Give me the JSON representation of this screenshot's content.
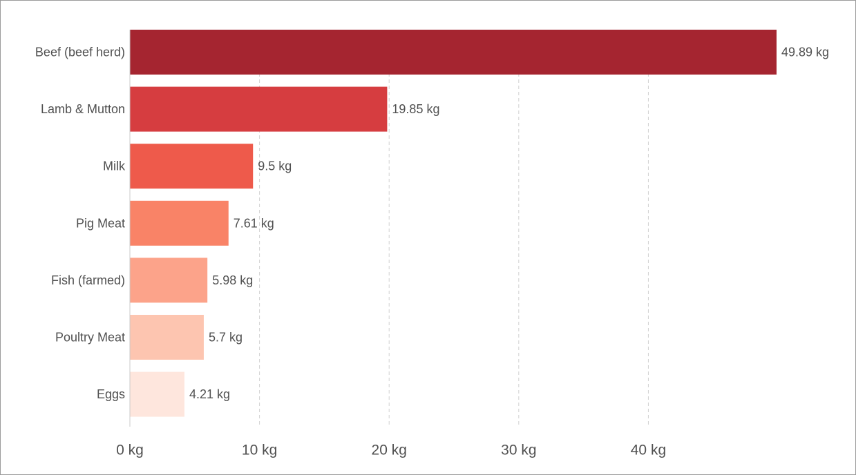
{
  "chart_data": {
    "type": "bar",
    "orientation": "horizontal",
    "title": "",
    "xlabel": "",
    "ylabel": "",
    "unit": "kg",
    "categories": [
      "Beef (beef herd)",
      "Lamb & Mutton",
      "Milk",
      "Pig Meat",
      "Fish (farmed)",
      "Poultry Meat",
      "Eggs"
    ],
    "values": [
      49.89,
      19.85,
      9.5,
      7.61,
      5.98,
      5.7,
      4.21
    ],
    "value_labels": [
      "49.89 kg",
      "19.85 kg",
      "9.5 kg",
      "7.61 kg",
      "5.98 kg",
      "5.7 kg",
      "4.21 kg"
    ],
    "colors": [
      "#a52530",
      "#d63d40",
      "#ee5a4b",
      "#f98367",
      "#fca38a",
      "#fdc5b0",
      "#fee6dd"
    ],
    "xticks": [
      0,
      10,
      20,
      30,
      40
    ],
    "xtick_labels": [
      "0 kg",
      "10 kg",
      "20 kg",
      "30 kg",
      "40 kg"
    ],
    "xlim": [
      0,
      49.89
    ],
    "grid": "vertical dashed",
    "legend": "none"
  }
}
